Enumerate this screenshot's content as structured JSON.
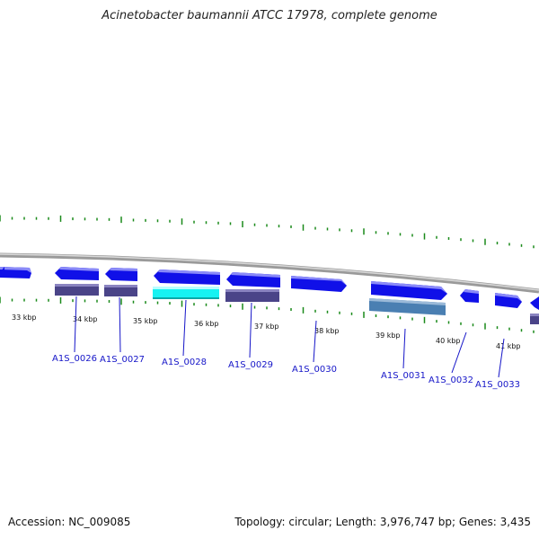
{
  "title": "Acinetobacter baumannii ATCC 17978, complete genome",
  "footer": {
    "accession": "Accession: NC_009085",
    "summary": "Topology: circular; Length: 3,976,747 bp; Genes: 3,435"
  },
  "colors": {
    "gene_forward": "#1010e8",
    "gene_forward_dark": "#0a0a90",
    "cds_purple": "#4a4488",
    "cds_cyan": "#16f2f2",
    "cds_steel": "#4a7fb2",
    "tick": "#1a8a1a",
    "backbone": "#888888",
    "label": "#1515c8"
  },
  "kbp_labels": [
    "33 kbp",
    "34 kbp",
    "35 kbp",
    "36 kbp",
    "37 kbp",
    "38 kbp",
    "39 kbp",
    "40 kbp",
    "41 kbp"
  ],
  "gene_labels": [
    "A1S_0026",
    "A1S_0027",
    "A1S_0028",
    "A1S_0029",
    "A1S_0030",
    "A1S_0031",
    "A1S_0032",
    "A1S_0033"
  ]
}
